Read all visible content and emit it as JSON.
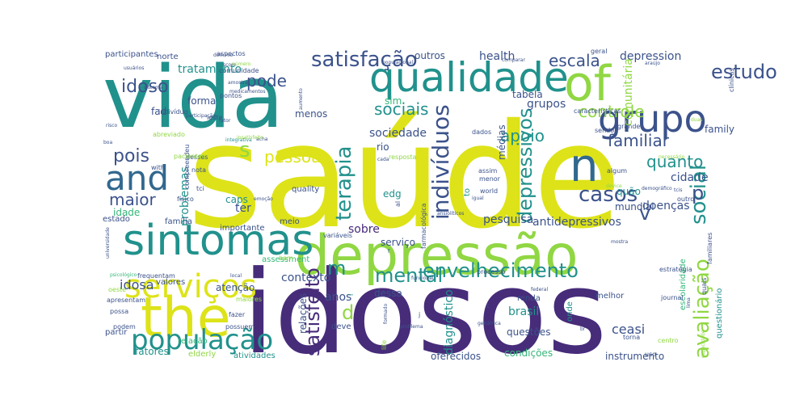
{
  "palette": {
    "purple": "#472c7a",
    "indigo": "#3b528b",
    "blue": "#31688e",
    "teal": "#21918c",
    "green": "#35b779",
    "lime": "#90d743",
    "yellow": "#dde318"
  },
  "words": [
    {
      "text": "saúde",
      "color": "yellow"
    },
    {
      "text": "idosos",
      "color": "purple"
    },
    {
      "text": "vida",
      "color": "teal"
    },
    {
      "text": "depressão",
      "color": "lime"
    },
    {
      "text": "of",
      "color": "lime"
    },
    {
      "text": "the",
      "color": "yellow"
    },
    {
      "text": "sintomas",
      "color": "teal"
    },
    {
      "text": "qualidade",
      "color": "teal"
    },
    {
      "text": "grupo",
      "color": "indigo"
    },
    {
      "text": "n",
      "color": "blue"
    },
    {
      "text": "and",
      "color": "blue"
    },
    {
      "text": "serviços",
      "color": "yellow"
    },
    {
      "text": "população",
      "color": "teal"
    },
    {
      "text": "indivíduos",
      "color": "indigo"
    },
    {
      "text": "depressivos",
      "color": "teal"
    },
    {
      "text": "satisfação",
      "color": "indigo"
    },
    {
      "text": "estudo",
      "color": "indigo"
    },
    {
      "text": "casos",
      "color": "indigo"
    },
    {
      "text": "social",
      "color": "teal"
    },
    {
      "text": "terapia",
      "color": "teal"
    },
    {
      "text": "envelhecimento",
      "color": "teal"
    },
    {
      "text": "mental",
      "color": "teal"
    },
    {
      "text": "satisfeito",
      "color": "purple"
    },
    {
      "text": "avaliação",
      "color": "lime"
    },
    {
      "text": "idoso",
      "color": "indigo"
    },
    {
      "text": "pode",
      "color": "indigo"
    },
    {
      "text": "escala",
      "color": "indigo"
    },
    {
      "text": "sociais",
      "color": "teal"
    },
    {
      "text": "controle",
      "color": "lime"
    },
    {
      "text": "familiar",
      "color": "indigo"
    },
    {
      "text": "apoio",
      "color": "teal"
    },
    {
      "text": "pois",
      "color": "indigo"
    },
    {
      "text": "pessoas",
      "color": "yellow"
    },
    {
      "text": "maior",
      "color": "indigo"
    },
    {
      "text": "quanto",
      "color": "teal"
    },
    {
      "text": "p",
      "color": "indigo"
    },
    {
      "text": "v",
      "color": "indigo"
    },
    {
      "text": "m",
      "color": "teal"
    },
    {
      "text": "d",
      "color": "lime"
    },
    {
      "text": "s",
      "color": "lime"
    },
    {
      "text": "contexto",
      "color": "indigo"
    },
    {
      "text": "idosa",
      "color": "indigo"
    },
    {
      "text": "brasil",
      "color": "teal"
    },
    {
      "text": "diagnóstico",
      "color": "teal"
    },
    {
      "text": "doenças",
      "color": "indigo"
    },
    {
      "text": "antidepressivos",
      "color": "indigo"
    },
    {
      "text": "pesquisa",
      "color": "indigo"
    },
    {
      "text": "health",
      "color": "indigo"
    },
    {
      "text": "depression",
      "color": "indigo"
    },
    {
      "text": "comunitária",
      "color": "lime"
    },
    {
      "text": "tratamento",
      "color": "teal"
    },
    {
      "text": "participantes",
      "color": "indigo"
    },
    {
      "text": "outros",
      "color": "indigo"
    },
    {
      "text": "grupos",
      "color": "indigo"
    },
    {
      "text": "médias",
      "color": "indigo"
    },
    {
      "text": "sociedade",
      "color": "indigo"
    },
    {
      "text": "problemas",
      "color": "teal"
    },
    {
      "text": "forma",
      "color": "indigo"
    },
    {
      "text": "fad",
      "color": "indigo"
    },
    {
      "text": "caps",
      "color": "teal"
    },
    {
      "text": "edg",
      "color": "teal"
    },
    {
      "text": "rio",
      "color": "indigo"
    },
    {
      "text": "sobre",
      "color": "purple"
    },
    {
      "text": "anos",
      "color": "indigo"
    },
    {
      "text": "atenção",
      "color": "indigo"
    },
    {
      "text": "fatores",
      "color": "teal"
    },
    {
      "text": "cidade",
      "color": "indigo"
    },
    {
      "text": "quão",
      "color": "teal"
    },
    {
      "text": "mundial",
      "color": "indigo"
    },
    {
      "text": "ceasi",
      "color": "indigo"
    },
    {
      "text": "relações",
      "color": "indigo"
    },
    {
      "text": "ter",
      "color": "indigo"
    },
    {
      "text": "idade",
      "color": "green"
    },
    {
      "text": "menos",
      "color": "indigo"
    },
    {
      "text": "sim",
      "color": "green"
    },
    {
      "text": "tabela",
      "color": "indigo"
    },
    {
      "text": "family",
      "color": "indigo"
    },
    {
      "text": "serviço",
      "color": "indigo"
    },
    {
      "text": "dessa",
      "color": "indigo"
    },
    {
      "text": "questões",
      "color": "indigo"
    },
    {
      "text": "condições",
      "color": "green"
    },
    {
      "text": "oferecidos",
      "color": "indigo"
    },
    {
      "text": "instrumento",
      "color": "indigo"
    },
    {
      "text": "atividades",
      "color": "teal"
    },
    {
      "text": "elderly",
      "color": "lime"
    },
    {
      "text": "questionário",
      "color": "teal"
    },
    {
      "text": "escolaridade",
      "color": "green"
    },
    {
      "text": "processo",
      "color": "indigo"
    },
    {
      "text": "assessment",
      "color": "green"
    },
    {
      "text": "outro",
      "color": "indigo"
    },
    {
      "text": "to",
      "color": "teal"
    },
    {
      "text": "onde",
      "color": "teal"
    },
    {
      "text": "quais",
      "color": "indigo"
    },
    {
      "text": "uso",
      "color": "indigo"
    },
    {
      "text": "centro",
      "color": "lime"
    },
    {
      "text": "torna",
      "color": "indigo"
    },
    {
      "text": "renda",
      "color": "indigo"
    },
    {
      "text": "melhor",
      "color": "indigo"
    },
    {
      "text": "deve",
      "color": "indigo"
    },
    {
      "text": "valores",
      "color": "indigo"
    },
    {
      "text": "possa",
      "color": "indigo"
    },
    {
      "text": "podem",
      "color": "indigo"
    },
    {
      "text": "partir",
      "color": "indigo"
    },
    {
      "text": "relação",
      "color": "green"
    },
    {
      "text": "possuem",
      "color": "indigo"
    },
    {
      "text": "fazer",
      "color": "indigo"
    },
    {
      "text": "maiores",
      "color": "lime"
    },
    {
      "text": "frequentam",
      "color": "indigo"
    },
    {
      "text": "estado",
      "color": "indigo"
    },
    {
      "text": "família",
      "color": "indigo"
    },
    {
      "text": "importante",
      "color": "indigo"
    },
    {
      "text": "meio",
      "color": "indigo"
    },
    {
      "text": "tci",
      "color": "indigo"
    },
    {
      "text": "físico",
      "color": "indigo"
    },
    {
      "text": "quality",
      "color": "indigo"
    },
    {
      "text": "desses",
      "color": "indigo"
    },
    {
      "text": "nota",
      "color": "indigo"
    },
    {
      "text": "pontos",
      "color": "indigo"
    },
    {
      "text": "leste",
      "color": "indigo"
    },
    {
      "text": "indivíduo",
      "color": "indigo"
    },
    {
      "text": "abreviado",
      "color": "lime"
    },
    {
      "text": "with",
      "color": "indigo"
    },
    {
      "text": "norte",
      "color": "indigo"
    },
    {
      "text": "aspectos",
      "color": "indigo"
    },
    {
      "text": "geral",
      "color": "indigo"
    },
    {
      "text": "dados",
      "color": "indigo"
    },
    {
      "text": "assim",
      "color": "indigo"
    },
    {
      "text": "menor",
      "color": "indigo"
    },
    {
      "text": "sendo",
      "color": "indigo"
    },
    {
      "text": "grande",
      "color": "indigo"
    },
    {
      "text": "bem",
      "color": "lime"
    },
    {
      "text": "journal",
      "color": "indigo"
    },
    {
      "text": "estratégia",
      "color": "indigo"
    },
    {
      "text": "familiares",
      "color": "indigo"
    },
    {
      "text": "domínio",
      "color": "indigo"
    },
    {
      "text": "comunidade",
      "color": "indigo"
    },
    {
      "text": "usuários",
      "color": "indigo"
    },
    {
      "text": "medicamentos",
      "color": "indigo"
    },
    {
      "text": "fator",
      "color": "indigo"
    },
    {
      "text": "participação",
      "color": "indigo"
    },
    {
      "text": "risco",
      "color": "indigo"
    },
    {
      "text": "boa",
      "color": "indigo"
    },
    {
      "text": "acha",
      "color": "indigo"
    },
    {
      "text": "integrativa",
      "color": "teal"
    },
    {
      "text": "insatisfeito",
      "color": "lime"
    },
    {
      "text": "compreendeu",
      "color": "indigo"
    },
    {
      "text": "pacientes",
      "color": "lime"
    },
    {
      "text": "device",
      "color": "lime"
    },
    {
      "text": "algum",
      "color": "indigo"
    },
    {
      "text": "resposta",
      "color": "lime"
    },
    {
      "text": "cada",
      "color": "indigo"
    },
    {
      "text": "al",
      "color": "indigo"
    },
    {
      "text": "igual",
      "color": "indigo"
    },
    {
      "text": "world",
      "color": "indigo"
    },
    {
      "text": "demográfico",
      "color": "indigo"
    },
    {
      "text": "tcis",
      "color": "indigo"
    },
    {
      "text": "necessário",
      "color": "lime"
    },
    {
      "text": "araújo",
      "color": "indigo"
    },
    {
      "text": "clínicas",
      "color": "indigo"
    },
    {
      "text": "duas",
      "color": "lime"
    },
    {
      "text": "comparar",
      "color": "indigo"
    },
    {
      "text": "características",
      "color": "indigo"
    },
    {
      "text": "populacional",
      "color": "indigo"
    },
    {
      "text": "amostra",
      "color": "indigo"
    },
    {
      "text": "funcional",
      "color": "indigo"
    },
    {
      "text": "problema",
      "color": "indigo"
    },
    {
      "text": "formado",
      "color": "indigo"
    },
    {
      "text": "geriátrica",
      "color": "indigo"
    },
    {
      "text": "federal",
      "color": "indigo"
    },
    {
      "text": "mostra",
      "color": "indigo"
    },
    {
      "text": "apresentam",
      "color": "indigo"
    },
    {
      "text": "psicológico",
      "color": "green"
    },
    {
      "text": "oeste",
      "color": "lime"
    },
    {
      "text": "life",
      "color": "lime"
    },
    {
      "text": "farmacológica",
      "color": "indigo"
    },
    {
      "text": "variáveis",
      "color": "indigo"
    },
    {
      "text": "capacidade",
      "color": "lime"
    },
    {
      "text": "lima",
      "color": "indigo"
    },
    {
      "text": "universidade",
      "color": "indigo"
    },
    {
      "text": "ansiolíticos",
      "color": "indigo"
    },
    {
      "text": "aumento",
      "color": "indigo"
    },
    {
      "text": "score",
      "color": "indigo"
    },
    {
      "text": "número",
      "color": "lime"
    },
    {
      "text": "sistema",
      "color": "indigo"
    },
    {
      "text": "emoção",
      "color": "indigo"
    },
    {
      "text": "local",
      "color": "indigo"
    },
    {
      "text": "br",
      "color": "indigo"
    },
    {
      "text": "l",
      "color": "teal"
    },
    {
      "text": "f",
      "color": "indigo"
    },
    {
      "text": "j",
      "color": "indigo"
    },
    {
      "text": "c",
      "color": "indigo"
    }
  ]
}
